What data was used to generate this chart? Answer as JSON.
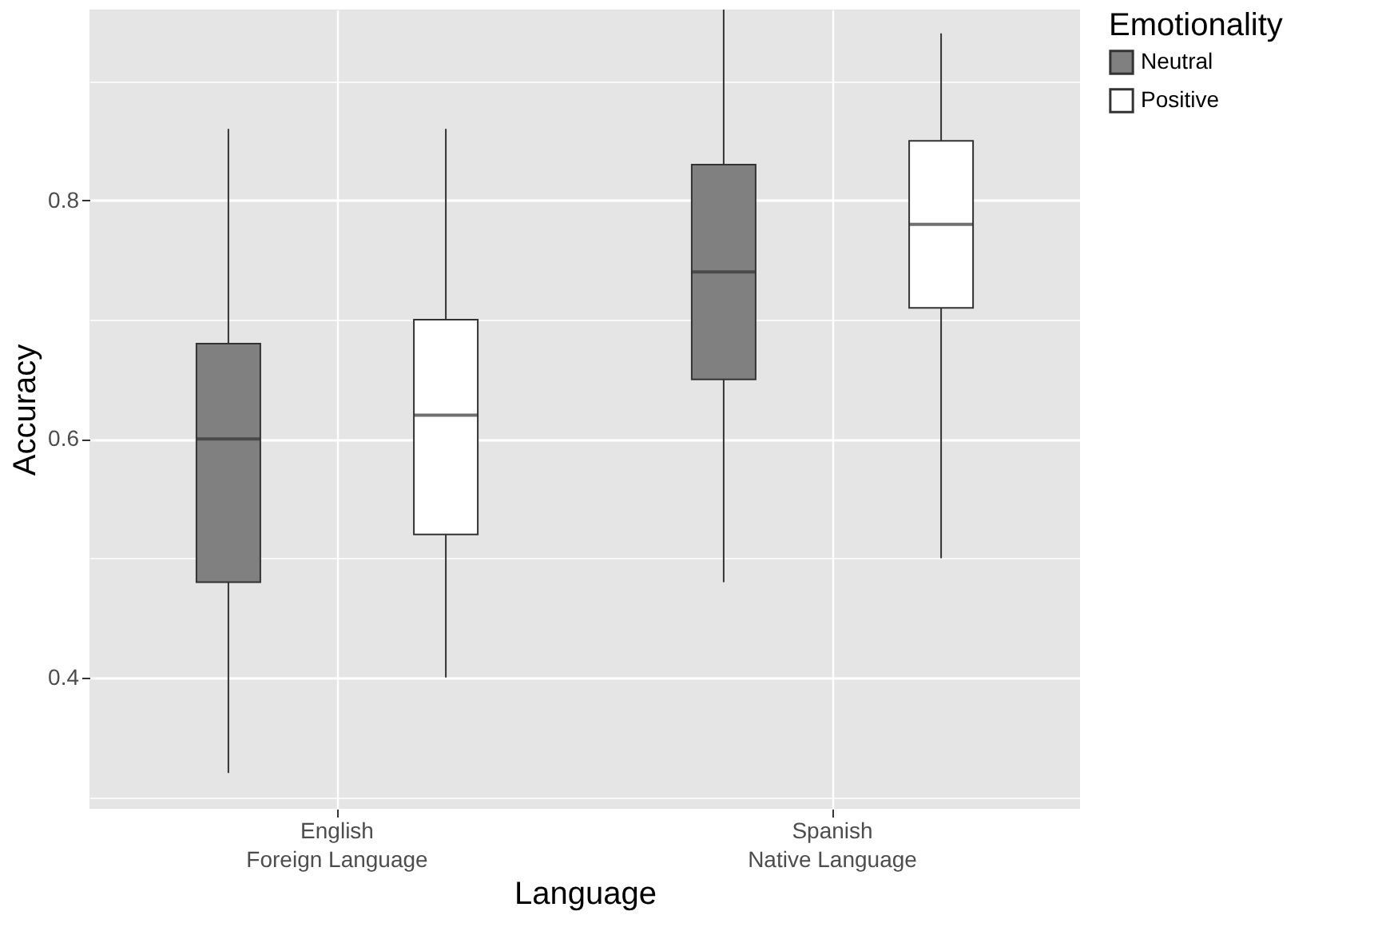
{
  "chart_data": {
    "type": "box",
    "xlabel": "Language",
    "ylabel": "Accuracy",
    "legend_title": "Emotionality",
    "categories": [
      "English\nForeign Language",
      "Spanish\nNative Language"
    ],
    "series": [
      {
        "name": "Neutral",
        "color": "#808080",
        "boxes": [
          {
            "low": 0.32,
            "q1": 0.48,
            "median": 0.6,
            "q3": 0.68,
            "high": 0.86
          },
          {
            "low": 0.48,
            "q1": 0.65,
            "median": 0.74,
            "q3": 0.83,
            "high": 0.96
          }
        ]
      },
      {
        "name": "Positive",
        "color": "#ffffff",
        "boxes": [
          {
            "low": 0.4,
            "q1": 0.52,
            "median": 0.62,
            "q3": 0.7,
            "high": 0.86
          },
          {
            "low": 0.5,
            "q1": 0.71,
            "median": 0.78,
            "q3": 0.85,
            "high": 0.94
          }
        ]
      }
    ],
    "ylim": [
      0.29,
      0.96
    ],
    "yticks": [
      {
        "value": 0.3,
        "label": null
      },
      0.4,
      {
        "value": 0.5,
        "label": null
      },
      0.6,
      {
        "value": 0.7,
        "label": null
      },
      0.8,
      {
        "value": 0.9,
        "label": null
      }
    ],
    "grid": true,
    "legend": "right"
  }
}
